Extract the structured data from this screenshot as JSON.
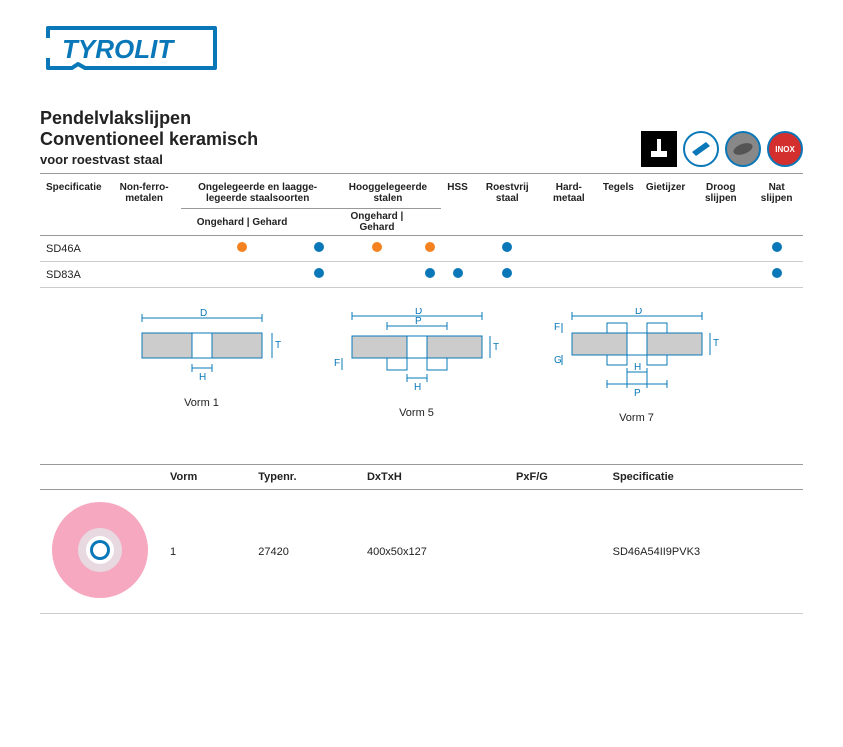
{
  "brand": "TYROLIT",
  "brand_color": "#0a78b8",
  "title1": "Pendelvlakslijpen",
  "title2": "Conventioneel keramisch",
  "subtitle": "voor roestvast staal",
  "colors": {
    "orange": "#f58220",
    "blue": "#0a78b8",
    "border": "#999999",
    "text": "#222222",
    "grain": "#b8b8b8",
    "pink_wheel": "#f5a8c0",
    "pink_inner": "#e8d8e0"
  },
  "badges": [
    {
      "name": "machine-icon",
      "type": "square",
      "bg": "#000"
    },
    {
      "name": "bar-icon",
      "type": "circle",
      "bg": "#fff"
    },
    {
      "name": "disc-icon",
      "type": "circle",
      "bg": "#666"
    },
    {
      "name": "inox-icon",
      "type": "circle",
      "bg": "#d32f2f",
      "label": "INOX"
    }
  ],
  "spec_headers": {
    "col1": "Specificatie",
    "col2": "Non-ferro-metalen",
    "col3": "Ongelegeerde en laagge-legeerde staalsoorten",
    "col4": "Hooggelegeerde stalen",
    "col5": "HSS",
    "col6": "Roestvrij staal",
    "col7": "Hard-metaal",
    "col8": "Tegels",
    "col9": "Gietijzer",
    "col10": "Droog slijpen",
    "col11": "Nat slijpen"
  },
  "sub_headers": {
    "ongehard": "Ongehard",
    "gehard": "Gehard"
  },
  "spec_rows": [
    {
      "spec": "SD46A",
      "cells": [
        "",
        "orange",
        "blue",
        "orange",
        "orange",
        "",
        "blue",
        "",
        "",
        "",
        "",
        "blue"
      ]
    },
    {
      "spec": "SD83A",
      "cells": [
        "",
        "",
        "blue",
        "",
        "blue",
        "blue",
        "blue",
        "",
        "",
        "",
        "",
        "blue"
      ]
    }
  ],
  "diagrams": [
    {
      "label": "Vorm 1",
      "letters": {
        "top": "D",
        "right": "T",
        "bottom": "H"
      }
    },
    {
      "label": "Vorm 5",
      "letters": {
        "top1": "D",
        "top2": "P",
        "right": "T",
        "bottom": "H",
        "left": "F"
      }
    },
    {
      "label": "Vorm 7",
      "letters": {
        "top": "D",
        "right": "T",
        "bottom1": "H",
        "bottom2": "P",
        "left1": "F",
        "left2": "G"
      }
    }
  ],
  "product_headers": {
    "img": "",
    "vorm": "Vorm",
    "typenr": "Typenr.",
    "dxtxh": "DxTxH",
    "pxfg": "PxF/G",
    "spec": "Specificatie"
  },
  "product_row": {
    "vorm": "1",
    "typenr": "27420",
    "dxtxh": "400x50x127",
    "pxfg": "",
    "spec": "SD46A54II9PVK3"
  }
}
